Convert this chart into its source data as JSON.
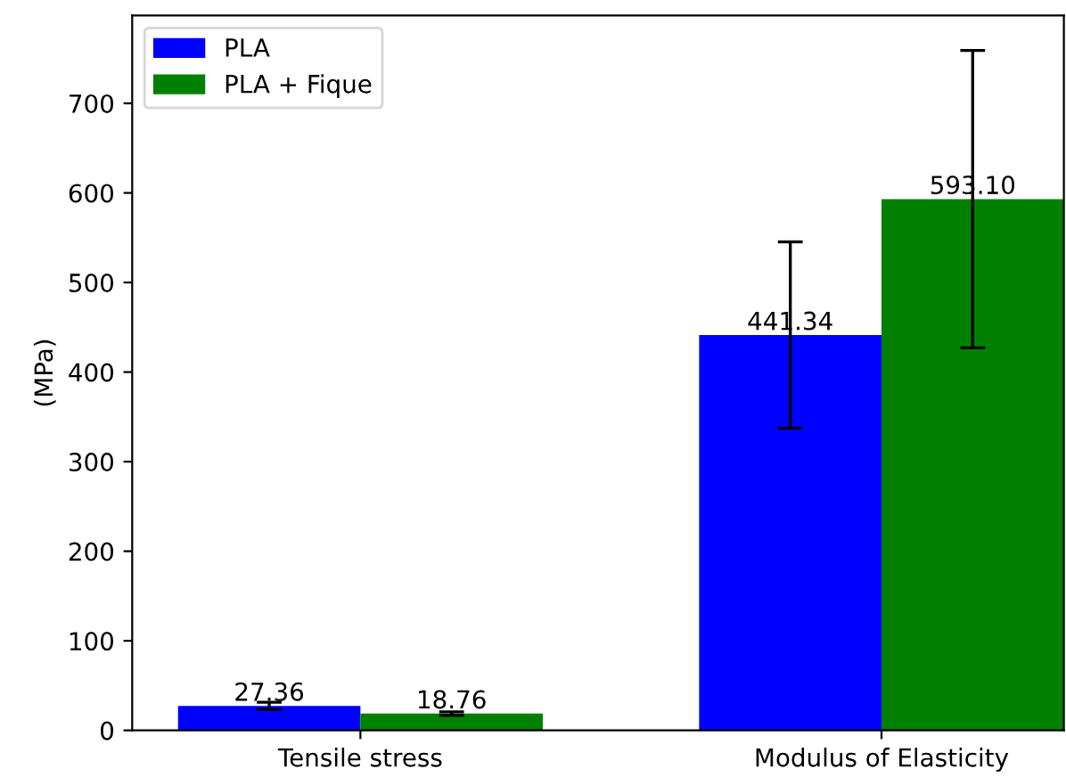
{
  "chart_data": {
    "type": "bar",
    "ylabel": "(MPa)",
    "categories": [
      "Tensile stress",
      "Modulus of Elasticity"
    ],
    "series": [
      {
        "name": "PLA",
        "color": "#0000ff",
        "values": [
          27.36,
          441.34
        ],
        "errors": [
          4,
          104
        ],
        "value_labels": [
          "27.36",
          "441.34"
        ]
      },
      {
        "name": "PLA + Fique",
        "color": "#008000",
        "values": [
          18.76,
          593.1
        ],
        "errors": [
          2,
          166
        ],
        "value_labels": [
          "18.76",
          "593.10"
        ]
      }
    ],
    "ylim": [
      0,
      798
    ],
    "yticks": [
      0,
      100,
      200,
      300,
      400,
      500,
      600,
      700
    ],
    "legend": "top left",
    "grid": false
  }
}
